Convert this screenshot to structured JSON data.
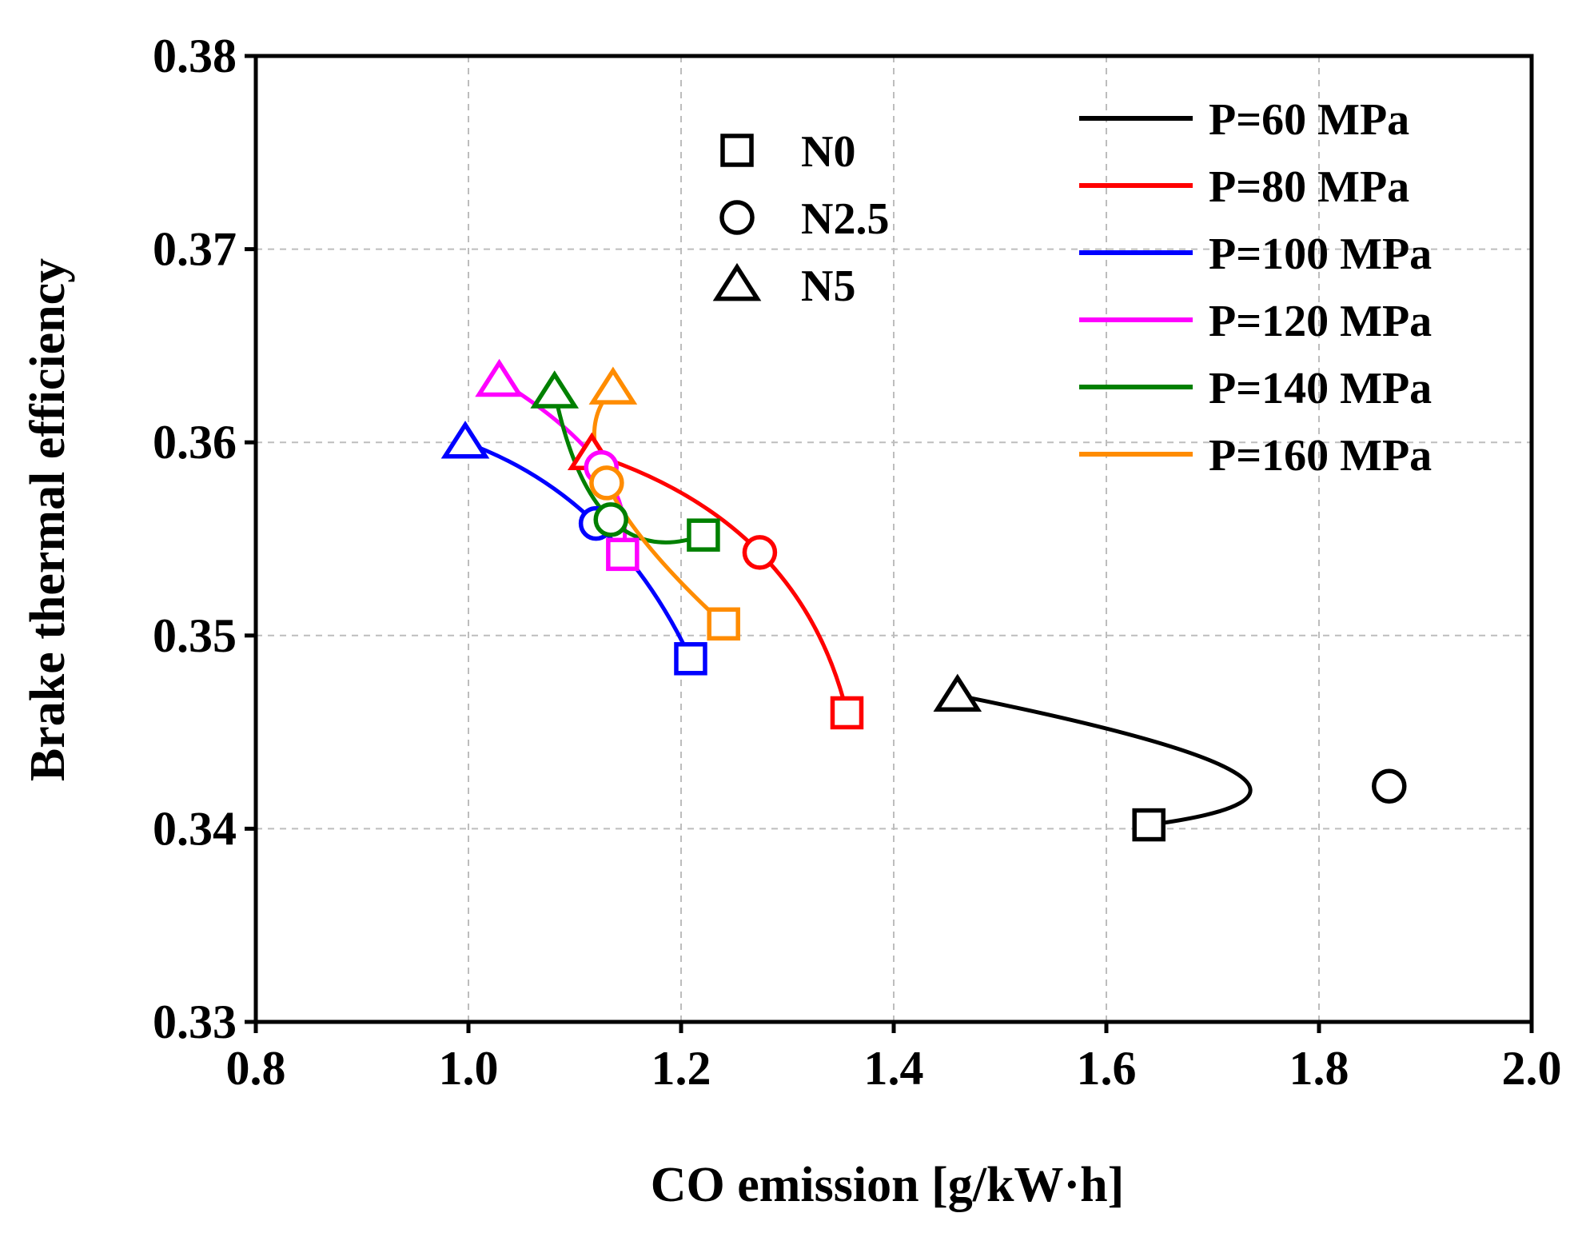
{
  "chart_data": {
    "type": "line",
    "title": "",
    "xlabel": "CO emission [g/kW·h]",
    "ylabel": "Brake thermal efficiency",
    "xlim": [
      0.8,
      2.0
    ],
    "ylim": [
      0.33,
      0.38
    ],
    "grid": true,
    "xticks": [
      0.8,
      1.0,
      1.2,
      1.4,
      1.6,
      1.8,
      2.0
    ],
    "xtick_labels": [
      "0.8",
      "1.0",
      "1.2",
      "1.4",
      "1.6",
      "1.8",
      "2.0"
    ],
    "yticks": [
      0.33,
      0.34,
      0.35,
      0.36,
      0.37,
      0.38
    ],
    "ytick_labels": [
      "0.33",
      "0.34",
      "0.35",
      "0.36",
      "0.37",
      "0.38"
    ],
    "marker_legend": {
      "placement": "top-center",
      "entries": [
        {
          "marker": "square",
          "label": "N0"
        },
        {
          "marker": "circle",
          "label": "N2.5"
        },
        {
          "marker": "triangle",
          "label": "N5"
        }
      ]
    },
    "line_legend_placement": "top-right",
    "series": [
      {
        "name": "P=60 MPa",
        "color": "#000000",
        "points": [
          {
            "blend": "N0",
            "x": 1.64,
            "y": 0.3402
          },
          {
            "blend": "N2.5",
            "x": 1.866,
            "y": 0.3422
          },
          {
            "blend": "N5",
            "x": 1.46,
            "y": 0.3469
          }
        ]
      },
      {
        "name": "P=80 MPa",
        "color": "#ff0000",
        "points": [
          {
            "blend": "N0",
            "x": 1.356,
            "y": 0.346
          },
          {
            "blend": "N2.5",
            "x": 1.274,
            "y": 0.3543
          },
          {
            "blend": "N5",
            "x": 1.116,
            "y": 0.3594
          }
        ]
      },
      {
        "name": "P=100 MPa",
        "color": "#0000ff",
        "points": [
          {
            "blend": "N0",
            "x": 1.209,
            "y": 0.3488
          },
          {
            "blend": "N2.5",
            "x": 1.12,
            "y": 0.3558
          },
          {
            "blend": "N5",
            "x": 0.997,
            "y": 0.36
          }
        ]
      },
      {
        "name": "P=120 MPa",
        "color": "#ff00ff",
        "points": [
          {
            "blend": "N0",
            "x": 1.145,
            "y": 0.3542
          },
          {
            "blend": "N2.5",
            "x": 1.125,
            "y": 0.3587
          },
          {
            "blend": "N5",
            "x": 1.029,
            "y": 0.3632
          }
        ]
      },
      {
        "name": "P=140 MPa",
        "color": "#008000",
        "points": [
          {
            "blend": "N0",
            "x": 1.221,
            "y": 0.3552
          },
          {
            "blend": "N2.5",
            "x": 1.134,
            "y": 0.356
          },
          {
            "blend": "N5",
            "x": 1.081,
            "y": 0.3626
          }
        ]
      },
      {
        "name": "P=160 MPa",
        "color": "#ff8c00",
        "points": [
          {
            "blend": "N0",
            "x": 1.24,
            "y": 0.3506
          },
          {
            "blend": "N2.5",
            "x": 1.13,
            "y": 0.3579
          },
          {
            "blend": "N5",
            "x": 1.136,
            "y": 0.3628
          }
        ]
      }
    ]
  }
}
